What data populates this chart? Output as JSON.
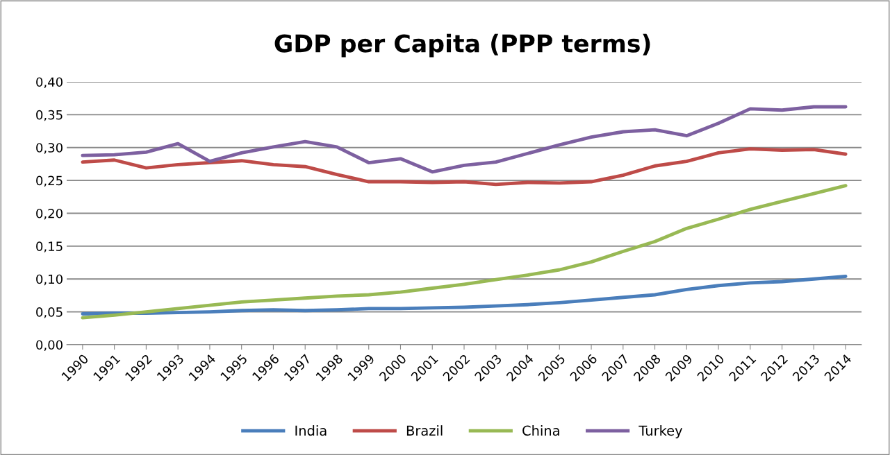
{
  "chart_data": {
    "type": "line",
    "title": "GDP per Capita (PPP terms)",
    "categories": [
      "1990",
      "1991",
      "1992",
      "1993",
      "1994",
      "1995",
      "1996",
      "1997",
      "1998",
      "1999",
      "2000",
      "2001",
      "2002",
      "2003",
      "2004",
      "2005",
      "2006",
      "2007",
      "2008",
      "2009",
      "2010",
      "2011",
      "2012",
      "2013",
      "2014"
    ],
    "series": [
      {
        "name": "India",
        "color": "#4a7ebb",
        "values": [
          0.047,
          0.048,
          0.048,
          0.049,
          0.05,
          0.052,
          0.053,
          0.052,
          0.053,
          0.055,
          0.055,
          0.056,
          0.057,
          0.059,
          0.061,
          0.064,
          0.068,
          0.072,
          0.076,
          0.084,
          0.09,
          0.094,
          0.096,
          0.1,
          0.104
        ]
      },
      {
        "name": "Brazil",
        "color": "#be4b48",
        "values": [
          0.278,
          0.281,
          0.269,
          0.274,
          0.277,
          0.28,
          0.274,
          0.271,
          0.259,
          0.248,
          0.248,
          0.247,
          0.248,
          0.244,
          0.247,
          0.246,
          0.248,
          0.258,
          0.272,
          0.279,
          0.292,
          0.298,
          0.296,
          0.297,
          0.29
        ]
      },
      {
        "name": "China",
        "color": "#98b954",
        "values": [
          0.041,
          0.045,
          0.05,
          0.055,
          0.06,
          0.065,
          0.068,
          0.071,
          0.074,
          0.076,
          0.08,
          0.086,
          0.092,
          0.099,
          0.106,
          0.114,
          0.126,
          0.142,
          0.157,
          0.177,
          0.191,
          0.206,
          0.218,
          0.23,
          0.242
        ]
      },
      {
        "name": "Turkey",
        "color": "#7d60a0",
        "values": [
          0.288,
          0.289,
          0.293,
          0.306,
          0.279,
          0.292,
          0.301,
          0.309,
          0.301,
          0.277,
          0.283,
          0.263,
          0.273,
          0.278,
          0.291,
          0.304,
          0.316,
          0.324,
          0.327,
          0.318,
          0.337,
          0.359,
          0.357,
          0.362,
          0.362
        ]
      }
    ],
    "ylim": [
      0,
      0.4
    ],
    "yticks": [
      {
        "value": 0,
        "label": "0,00"
      },
      {
        "value": 0.05,
        "label": "0,05"
      },
      {
        "value": 0.1,
        "label": "0,10"
      },
      {
        "value": 0.15,
        "label": "0,15"
      },
      {
        "value": 0.2,
        "label": "0,20"
      },
      {
        "value": 0.25,
        "label": "0,25"
      },
      {
        "value": 0.3,
        "label": "0,30"
      },
      {
        "value": 0.35,
        "label": "0,35"
      },
      {
        "value": 0.4,
        "label": "0,40"
      }
    ],
    "grid": "y",
    "legend": "bottom",
    "marker": "none",
    "line_style": "solid"
  }
}
